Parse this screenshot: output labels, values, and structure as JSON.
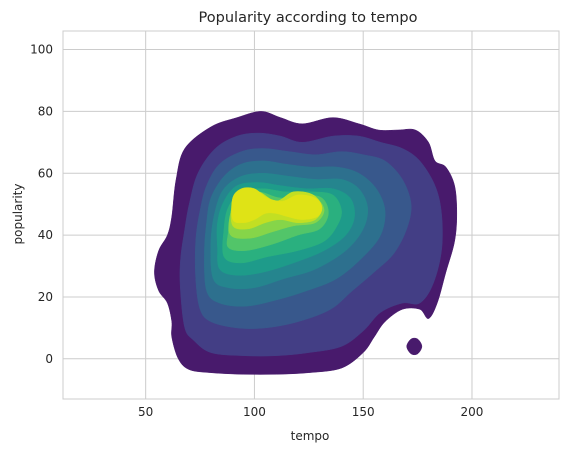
{
  "chart_data": {
    "type": "kde_density",
    "title": "Popularity according to tempo",
    "xlabel": "tempo",
    "ylabel": "popularity",
    "xlim": [
      12,
      240
    ],
    "ylim": [
      -13,
      106
    ],
    "xticks": [
      50,
      100,
      150,
      200
    ],
    "yticks": [
      0,
      20,
      40,
      60,
      80,
      100
    ],
    "grid": true,
    "colormap": [
      "#481a6c",
      "#433e85",
      "#38588c",
      "#2d708e",
      "#25858e",
      "#1e9b8a",
      "#2ab07f",
      "#52c569",
      "#86d549",
      "#c2df23",
      "#fde725"
    ],
    "levels": [
      {
        "level": 1,
        "color": "#481a6c",
        "polygon": [
          [
            62,
            7
          ],
          [
            65,
            0
          ],
          [
            70,
            -3.5
          ],
          [
            80,
            -4.5
          ],
          [
            95,
            -5
          ],
          [
            110,
            -5
          ],
          [
            125,
            -4.5
          ],
          [
            140,
            -3
          ],
          [
            150,
            2
          ],
          [
            155,
            7
          ],
          [
            160,
            12
          ],
          [
            168,
            16
          ],
          [
            176,
            16
          ],
          [
            180,
            13
          ],
          [
            184,
            18
          ],
          [
            188,
            28
          ],
          [
            192,
            38
          ],
          [
            193,
            47
          ],
          [
            192,
            56
          ],
          [
            188,
            62
          ],
          [
            183,
            64
          ],
          [
            180,
            70
          ],
          [
            174,
            74
          ],
          [
            166,
            74
          ],
          [
            157,
            74
          ],
          [
            148,
            76
          ],
          [
            136,
            78
          ],
          [
            122,
            76
          ],
          [
            112,
            78
          ],
          [
            103,
            80
          ],
          [
            92,
            78
          ],
          [
            80,
            75
          ],
          [
            68,
            68
          ],
          [
            64,
            58
          ],
          [
            62,
            46
          ],
          [
            60,
            40
          ],
          [
            56,
            35
          ],
          [
            54,
            28
          ],
          [
            56,
            22
          ],
          [
            60,
            18
          ],
          [
            62,
            12
          ]
        ]
      },
      {
        "level": 1,
        "color": "#481a6c",
        "polygon": [
          [
            170,
            4
          ],
          [
            172,
            1.6
          ],
          [
            175,
            1.6
          ],
          [
            177,
            4
          ],
          [
            175,
            6.4
          ],
          [
            172,
            6.4
          ]
        ]
      },
      {
        "level": 2,
        "color": "#433e85",
        "polygon": [
          [
            68,
            10
          ],
          [
            72,
            6
          ],
          [
            80,
            2
          ],
          [
            95,
            1
          ],
          [
            110,
            1
          ],
          [
            125,
            2
          ],
          [
            140,
            4
          ],
          [
            150,
            9
          ],
          [
            158,
            15
          ],
          [
            168,
            18
          ],
          [
            176,
            18
          ],
          [
            182,
            24
          ],
          [
            186,
            35
          ],
          [
            186,
            47
          ],
          [
            183,
            56
          ],
          [
            176,
            64
          ],
          [
            168,
            68
          ],
          [
            158,
            70
          ],
          [
            148,
            72
          ],
          [
            136,
            72
          ],
          [
            122,
            70
          ],
          [
            112,
            72
          ],
          [
            102,
            73
          ],
          [
            92,
            72
          ],
          [
            82,
            68
          ],
          [
            74,
            60
          ],
          [
            70,
            50
          ],
          [
            68,
            42
          ],
          [
            66,
            32
          ],
          [
            66,
            22
          ]
        ]
      },
      {
        "level": 3,
        "color": "#38588c",
        "polygon": [
          [
            75,
            16
          ],
          [
            80,
            12
          ],
          [
            92,
            10
          ],
          [
            105,
            10
          ],
          [
            120,
            12
          ],
          [
            135,
            16
          ],
          [
            145,
            22
          ],
          [
            155,
            28
          ],
          [
            164,
            34
          ],
          [
            170,
            42
          ],
          [
            172,
            50
          ],
          [
            168,
            58
          ],
          [
            160,
            64
          ],
          [
            150,
            66
          ],
          [
            140,
            67
          ],
          [
            128,
            66
          ],
          [
            116,
            67
          ],
          [
            104,
            68
          ],
          [
            94,
            67
          ],
          [
            84,
            63
          ],
          [
            78,
            56
          ],
          [
            75,
            48
          ],
          [
            73,
            38
          ],
          [
            73,
            26
          ]
        ]
      },
      {
        "level": 4,
        "color": "#2d708e",
        "polygon": [
          [
            78,
            22
          ],
          [
            84,
            18
          ],
          [
            96,
            17
          ],
          [
            110,
            19
          ],
          [
            124,
            22
          ],
          [
            138,
            26
          ],
          [
            150,
            33
          ],
          [
            158,
            40
          ],
          [
            160,
            48
          ],
          [
            156,
            55
          ],
          [
            148,
            60
          ],
          [
            138,
            62
          ],
          [
            126,
            62
          ],
          [
            114,
            63
          ],
          [
            104,
            64
          ],
          [
            94,
            63
          ],
          [
            86,
            59
          ],
          [
            80,
            52
          ],
          [
            78,
            44
          ],
          [
            77,
            34
          ]
        ]
      },
      {
        "level": 5,
        "color": "#25858e",
        "polygon": [
          [
            81,
            26
          ],
          [
            88,
            23
          ],
          [
            100,
            23
          ],
          [
            114,
            26
          ],
          [
            128,
            29
          ],
          [
            142,
            35
          ],
          [
            150,
            42
          ],
          [
            152,
            49
          ],
          [
            148,
            55
          ],
          [
            140,
            58
          ],
          [
            128,
            58
          ],
          [
            116,
            59
          ],
          [
            104,
            60
          ],
          [
            94,
            59
          ],
          [
            86,
            55
          ],
          [
            82,
            48
          ],
          [
            80,
            38
          ]
        ]
      },
      {
        "level": 6,
        "color": "#1e9b8a",
        "polygon": [
          [
            84,
            29
          ],
          [
            92,
            27
          ],
          [
            104,
            28
          ],
          [
            118,
            31
          ],
          [
            132,
            35
          ],
          [
            142,
            40
          ],
          [
            146,
            46
          ],
          [
            144,
            52
          ],
          [
            136,
            55
          ],
          [
            124,
            55
          ],
          [
            112,
            56
          ],
          [
            102,
            57
          ],
          [
            92,
            56
          ],
          [
            86,
            51
          ],
          [
            83,
            44
          ],
          [
            83,
            36
          ]
        ]
      },
      {
        "level": 7,
        "color": "#2ab07f",
        "polygon": [
          [
            86,
            33
          ],
          [
            94,
            31
          ],
          [
            106,
            33
          ],
          [
            120,
            35
          ],
          [
            132,
            38
          ],
          [
            138,
            43
          ],
          [
            140,
            48
          ],
          [
            136,
            53
          ],
          [
            126,
            54
          ],
          [
            114,
            54
          ],
          [
            104,
            55
          ],
          [
            94,
            54
          ],
          [
            88,
            49
          ],
          [
            86,
            42
          ]
        ]
      },
      {
        "level": 8,
        "color": "#52c569",
        "polygon": [
          [
            88,
            36
          ],
          [
            96,
            35
          ],
          [
            108,
            37
          ],
          [
            120,
            40
          ],
          [
            130,
            42
          ],
          [
            134,
            47
          ],
          [
            131,
            52
          ],
          [
            122,
            53
          ],
          [
            112,
            52
          ],
          [
            102,
            54
          ],
          [
            93,
            53
          ],
          [
            89,
            47
          ],
          [
            88,
            41
          ]
        ]
      },
      {
        "level": 9,
        "color": "#86d549",
        "polygon": [
          [
            89,
            40
          ],
          [
            98,
            39
          ],
          [
            108,
            41
          ],
          [
            118,
            43
          ],
          [
            128,
            44
          ],
          [
            132,
            48
          ],
          [
            128,
            52
          ],
          [
            118,
            52
          ],
          [
            108,
            51
          ],
          [
            100,
            53
          ],
          [
            92,
            52
          ],
          [
            89,
            47
          ]
        ]
      },
      {
        "level": 10,
        "color": "#c2df23",
        "polygon": [
          [
            90,
            43
          ],
          [
            97,
            42
          ],
          [
            105,
            44
          ],
          [
            112,
            45
          ],
          [
            120,
            44
          ],
          [
            128,
            45
          ],
          [
            131,
            49
          ],
          [
            127,
            53
          ],
          [
            118,
            54
          ],
          [
            110,
            51
          ],
          [
            102,
            54
          ],
          [
            94,
            54
          ],
          [
            90,
            50
          ]
        ]
      },
      {
        "level": 11,
        "color": "#dfe316",
        "polygon": [
          [
            90,
            45
          ],
          [
            95,
            44
          ],
          [
            100,
            45
          ],
          [
            105,
            47
          ],
          [
            110,
            47
          ],
          [
            115,
            46
          ],
          [
            122,
            45
          ],
          [
            129,
            46
          ],
          [
            131,
            49
          ],
          [
            128,
            52
          ],
          [
            120,
            53
          ],
          [
            113,
            51
          ],
          [
            106,
            52
          ],
          [
            100,
            55
          ],
          [
            94,
            55
          ],
          [
            90,
            52
          ]
        ]
      }
    ]
  }
}
